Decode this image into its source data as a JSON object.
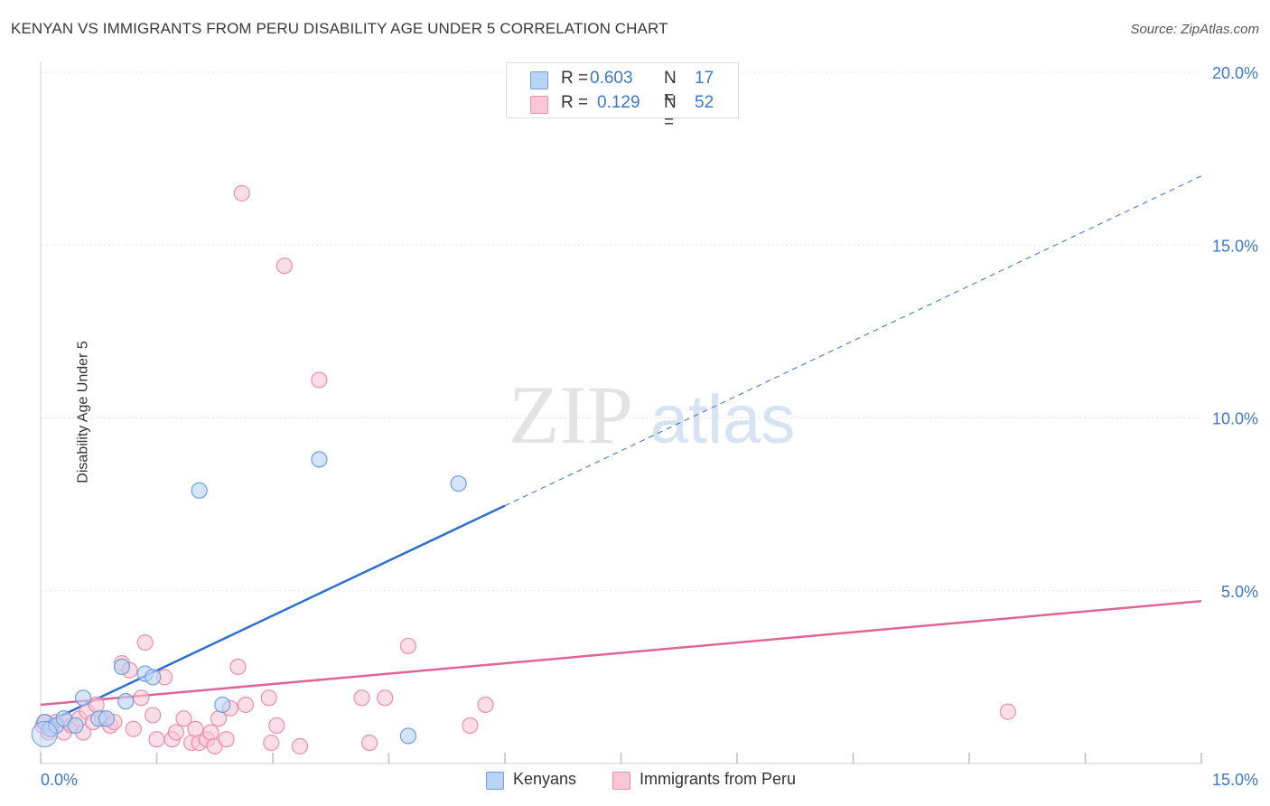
{
  "header": {
    "title": "KENYAN VS IMMIGRANTS FROM PERU DISABILITY AGE UNDER 5 CORRELATION CHART",
    "source": "Source: ZipAtlas.com"
  },
  "watermark": {
    "zip": "ZIP",
    "atlas": "atlas"
  },
  "legend_top": {
    "rows": [
      {
        "r_label": "R =",
        "r_value": "0.603",
        "n_label": "N =",
        "n_value": "17"
      },
      {
        "r_label": "R =",
        "r_value": "0.129",
        "n_label": "N =",
        "n_value": "52"
      }
    ]
  },
  "legend_bottom": {
    "items": [
      "Kenyans",
      "Immigrants from Peru"
    ]
  },
  "colors": {
    "kenyans_fill": "#b9d3f5",
    "kenyans_stroke": "#6d9ee0",
    "kenyans_line": "#2f6fcf",
    "peru_fill": "#f9c6d6",
    "peru_stroke": "#e98fae",
    "peru_line": "#e06595",
    "tick_label": "#3b78c9",
    "grid": "#e3e3e3"
  },
  "chart_data": {
    "type": "scatter",
    "title": "KENYAN VS IMMIGRANTS FROM PERU DISABILITY AGE UNDER 5 CORRELATION CHART",
    "xlabel": "",
    "ylabel": "Disability Age Under 5",
    "xlim": [
      0,
      15
    ],
    "ylim": [
      0,
      20
    ],
    "x_tick_labels": [
      "0.0%",
      "15.0%"
    ],
    "y_ticks": [
      5,
      10,
      15,
      20
    ],
    "y_tick_labels": [
      "5.0%",
      "10.0%",
      "15.0%",
      "20.0%"
    ],
    "grid": true,
    "legend_position": "top-center",
    "series": [
      {
        "name": "Kenyans",
        "R": 0.603,
        "N": 17,
        "points": [
          [
            0.05,
            1.2
          ],
          [
            0.12,
            1.0
          ],
          [
            0.2,
            1.1
          ],
          [
            0.3,
            1.3
          ],
          [
            0.45,
            1.1
          ],
          [
            0.55,
            1.9
          ],
          [
            0.75,
            1.3
          ],
          [
            0.85,
            1.3
          ],
          [
            1.1,
            1.8
          ],
          [
            1.05,
            2.8
          ],
          [
            1.35,
            2.6
          ],
          [
            1.45,
            2.5
          ],
          [
            2.05,
            7.9
          ],
          [
            2.35,
            1.7
          ],
          [
            3.6,
            8.8
          ],
          [
            4.75,
            0.8
          ],
          [
            5.4,
            8.1
          ]
        ],
        "trend": {
          "x0": 0.0,
          "y0": 1.1,
          "x1": 15.0,
          "y1": 17.0,
          "solid_until_x": 6.0
        }
      },
      {
        "name": "Immigrants from Peru",
        "R": 0.129,
        "N": 52,
        "points": [
          [
            0.03,
            1.1
          ],
          [
            0.06,
            1.2
          ],
          [
            0.1,
            0.9
          ],
          [
            0.15,
            1.0
          ],
          [
            0.2,
            1.2
          ],
          [
            0.3,
            0.9
          ],
          [
            0.35,
            1.2
          ],
          [
            0.4,
            1.1
          ],
          [
            0.5,
            1.3
          ],
          [
            0.55,
            0.9
          ],
          [
            0.6,
            1.5
          ],
          [
            0.68,
            1.2
          ],
          [
            0.72,
            1.7
          ],
          [
            0.8,
            1.3
          ],
          [
            0.9,
            1.1
          ],
          [
            0.95,
            1.2
          ],
          [
            1.05,
            2.9
          ],
          [
            1.15,
            2.7
          ],
          [
            1.2,
            1.0
          ],
          [
            1.3,
            1.9
          ],
          [
            1.35,
            3.5
          ],
          [
            1.45,
            1.4
          ],
          [
            1.5,
            0.7
          ],
          [
            1.6,
            2.5
          ],
          [
            1.7,
            0.7
          ],
          [
            1.75,
            0.9
          ],
          [
            1.85,
            1.3
          ],
          [
            1.95,
            0.6
          ],
          [
            2.0,
            1.0
          ],
          [
            2.05,
            0.6
          ],
          [
            2.15,
            0.7
          ],
          [
            2.2,
            0.9
          ],
          [
            2.25,
            0.5
          ],
          [
            2.3,
            1.3
          ],
          [
            2.4,
            0.7
          ],
          [
            2.45,
            1.6
          ],
          [
            2.55,
            2.8
          ],
          [
            2.65,
            1.7
          ],
          [
            2.6,
            16.5
          ],
          [
            2.95,
            1.9
          ],
          [
            2.98,
            0.6
          ],
          [
            3.05,
            1.1
          ],
          [
            3.15,
            14.4
          ],
          [
            3.35,
            0.5
          ],
          [
            3.6,
            11.1
          ],
          [
            4.15,
            1.9
          ],
          [
            4.25,
            0.6
          ],
          [
            4.45,
            1.9
          ],
          [
            4.75,
            3.4
          ],
          [
            5.55,
            1.1
          ],
          [
            5.75,
            1.7
          ],
          [
            12.5,
            1.5
          ]
        ],
        "trend": {
          "x0": 0.0,
          "y0": 1.7,
          "x1": 15.0,
          "y1": 4.7
        }
      }
    ]
  }
}
